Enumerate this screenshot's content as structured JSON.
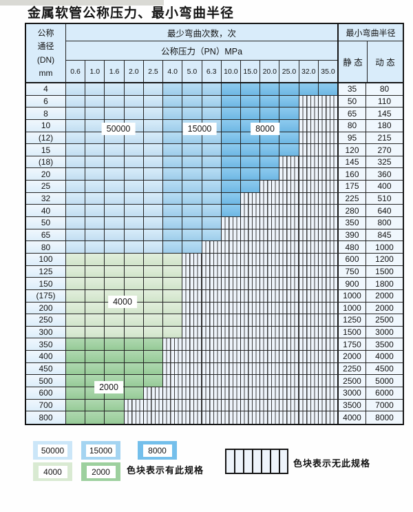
{
  "title": "金属软管公称压力、最小弯曲半径",
  "table": {
    "header": {
      "dn_label_lines": [
        "公称",
        "通径",
        "(DN)",
        "mm"
      ],
      "bend_cycles_label": "最少弯曲次数，次",
      "pressure_label": "公称压力（PN）MPa",
      "min_bend_radius_label": "最小弯曲半径",
      "static_label": "静 态",
      "dynamic_label": "动 态",
      "pressure_columns": [
        "0.6",
        "1.0",
        "1.6",
        "2.0",
        "2.5",
        "4.0",
        "5.0",
        "6.3",
        "10.0",
        "15.0",
        "20.0",
        "25.0",
        "32.0",
        "35.0"
      ]
    },
    "rows": [
      {
        "dn": "4",
        "max_pressure": "35.0",
        "static": "35",
        "dynamic": "80"
      },
      {
        "dn": "6",
        "max_pressure": "25.0",
        "static": "50",
        "dynamic": "110"
      },
      {
        "dn": "8",
        "max_pressure": "25.0",
        "static": "65",
        "dynamic": "145"
      },
      {
        "dn": "10",
        "max_pressure": "25.0",
        "static": "80",
        "dynamic": "180"
      },
      {
        "dn": "(12)",
        "max_pressure": "25.0",
        "static": "95",
        "dynamic": "215"
      },
      {
        "dn": "15",
        "max_pressure": "25.0",
        "static": "120",
        "dynamic": "270"
      },
      {
        "dn": "(18)",
        "max_pressure": "20.0",
        "static": "145",
        "dynamic": "325"
      },
      {
        "dn": "20",
        "max_pressure": "20.0",
        "static": "160",
        "dynamic": "360"
      },
      {
        "dn": "25",
        "max_pressure": "15.0",
        "static": "175",
        "dynamic": "400"
      },
      {
        "dn": "32",
        "max_pressure": "10.0",
        "static": "225",
        "dynamic": "510"
      },
      {
        "dn": "40",
        "max_pressure": "10.0",
        "static": "280",
        "dynamic": "640"
      },
      {
        "dn": "50",
        "max_pressure": "6.3",
        "static": "350",
        "dynamic": "800"
      },
      {
        "dn": "65",
        "max_pressure": "6.3",
        "static": "390",
        "dynamic": "845"
      },
      {
        "dn": "80",
        "max_pressure": "5.0",
        "static": "480",
        "dynamic": "1000"
      },
      {
        "dn": "100",
        "max_pressure": "4.0",
        "static": "600",
        "dynamic": "1200"
      },
      {
        "dn": "125",
        "max_pressure": "4.0",
        "static": "750",
        "dynamic": "1500"
      },
      {
        "dn": "150",
        "max_pressure": "4.0",
        "static": "900",
        "dynamic": "1800"
      },
      {
        "dn": "(175)",
        "max_pressure": "4.0",
        "static": "1000",
        "dynamic": "2000"
      },
      {
        "dn": "200",
        "max_pressure": "4.0",
        "static": "1000",
        "dynamic": "2000"
      },
      {
        "dn": "250",
        "max_pressure": "4.0",
        "static": "1250",
        "dynamic": "2500"
      },
      {
        "dn": "300",
        "max_pressure": "4.0",
        "static": "1500",
        "dynamic": "3000"
      },
      {
        "dn": "350",
        "max_pressure": "2.5",
        "static": "1750",
        "dynamic": "3500"
      },
      {
        "dn": "400",
        "max_pressure": "2.5",
        "static": "2000",
        "dynamic": "4000"
      },
      {
        "dn": "450",
        "max_pressure": "2.5",
        "static": "2250",
        "dynamic": "4500"
      },
      {
        "dn": "500",
        "max_pressure": "2.5",
        "static": "2500",
        "dynamic": "5000"
      },
      {
        "dn": "600",
        "max_pressure": "2.0",
        "static": "3000",
        "dynamic": "6000"
      },
      {
        "dn": "700",
        "max_pressure": "1.6",
        "static": "3500",
        "dynamic": "7000"
      },
      {
        "dn": "800",
        "max_pressure": "1.6",
        "static": "4000",
        "dynamic": "8000"
      }
    ]
  },
  "zones": {
    "blue_50000": {
      "cycles": "50000",
      "pressure_range": [
        "0.6",
        "2.5"
      ],
      "dn_range": [
        "4",
        "80"
      ]
    },
    "blue_15000": {
      "cycles": "15000",
      "pressure_range": [
        "4.0",
        "6.3"
      ],
      "dn_range": [
        "4",
        "80"
      ]
    },
    "blue_8000": {
      "cycles": "8000",
      "pressure_range": [
        "10.0",
        "35.0"
      ],
      "dn_range": [
        "4",
        "80"
      ]
    },
    "green_4000": {
      "cycles": "4000",
      "pressure_range": [
        "0.6",
        "4.0"
      ],
      "dn_range": [
        "100",
        "300"
      ]
    },
    "green_2000": {
      "cycles": "2000",
      "pressure_range": [
        "0.6",
        "2.5"
      ],
      "dn_range": [
        "350",
        "800"
      ]
    }
  },
  "zone_labels": [
    {
      "text": "50000"
    },
    {
      "text": "15000"
    },
    {
      "text": "8000"
    },
    {
      "text": "4000"
    },
    {
      "text": "2000"
    }
  ],
  "legend": {
    "items": [
      {
        "label": "50000",
        "color_key": "blue_50000"
      },
      {
        "label": "15000",
        "color_key": "blue_15000"
      },
      {
        "label": "8000",
        "color_key": "blue_8000"
      },
      {
        "label": "4000",
        "color_key": "green_4000"
      },
      {
        "label": "2000",
        "color_key": "green_2000"
      }
    ],
    "available_note": "色块表示有此规格",
    "unavailable_note": "色块表示无此规格"
  },
  "colors": {
    "blue_50000": "#cbe6f8",
    "blue_15000": "#a4d4f1",
    "blue_8000": "#74bfeb",
    "green_4000": "#d9ead2",
    "green_2000": "#9dd09e",
    "hatch_bg": "#eef4fb",
    "hdr": "#d9ecfa",
    "dncol": "#ddeefa",
    "valcol": "#f0f7fd",
    "grid_line": "#222222"
  }
}
